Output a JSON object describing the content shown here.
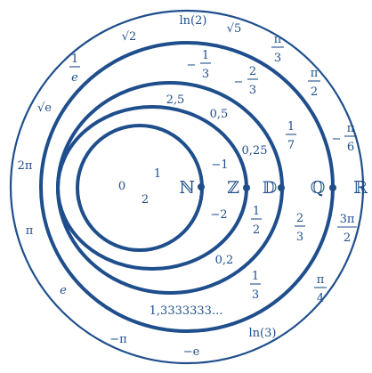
{
  "title": "",
  "accent_color": "#1f4e8c",
  "sets": [
    {
      "id": "N",
      "symbol": "ℕ"
    },
    {
      "id": "Z",
      "symbol": "ℤ"
    },
    {
      "id": "D",
      "symbol": "𝔻"
    },
    {
      "id": "Q",
      "symbol": "ℚ"
    },
    {
      "id": "R",
      "symbol": "ℝ"
    }
  ],
  "elements": {
    "naturals": [
      "0",
      "1",
      "2"
    ],
    "integers": [
      "−1",
      "−2"
    ],
    "decimals": [
      "2,5",
      "0,5",
      "0,25",
      "0,2"
    ],
    "decimal_fractions": [
      {
        "num": "1",
        "den": "2"
      }
    ],
    "rationals": [
      "1,3333333..."
    ],
    "rational_fractions": [
      {
        "sign": "−",
        "num": "1",
        "den": "3"
      },
      {
        "sign": "−",
        "num": "2",
        "den": "3"
      },
      {
        "sign": "",
        "num": "1",
        "den": "7"
      },
      {
        "sign": "",
        "num": "2",
        "den": "3"
      },
      {
        "sign": "",
        "num": "1",
        "den": "3"
      }
    ],
    "reals": [
      "ln(2)",
      "√5",
      "√2",
      "√e",
      "2π",
      "π",
      "e",
      "−π",
      "−e",
      "ln(3)"
    ],
    "real_fractions": [
      {
        "sign": "",
        "num": "1",
        "den": "e"
      },
      {
        "sign": "",
        "num": "π",
        "den": "3"
      },
      {
        "sign": "",
        "num": "π",
        "den": "2"
      },
      {
        "sign": "−",
        "num": "π",
        "den": "6"
      },
      {
        "sign": "",
        "num": "3π",
        "den": "2"
      },
      {
        "sign": "",
        "num": "π",
        "den": "4"
      }
    ]
  }
}
